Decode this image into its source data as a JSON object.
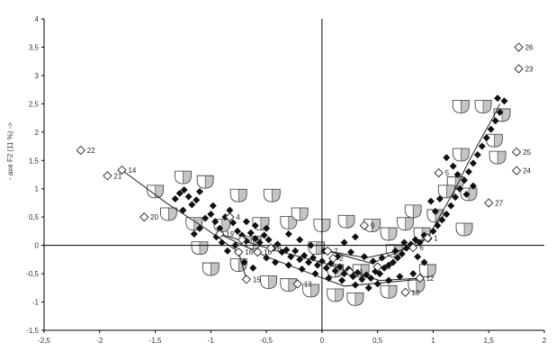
{
  "chart_data": {
    "type": "scatter",
    "title": "",
    "ylabel": "- axe F2 (11 %) ->",
    "xlabel": "",
    "xlim": [
      -2.5,
      2
    ],
    "ylim": [
      -1.5,
      4
    ],
    "xticks": [
      -2.5,
      -2,
      -1.5,
      -1,
      -0.5,
      0,
      0.5,
      1,
      1.5,
      2
    ],
    "xtick_labels": [
      "-2,5",
      "-2",
      "-1,5",
      "-1",
      "-0,5",
      "0",
      "0,5",
      "1",
      "1,5",
      "2"
    ],
    "yticks": [
      -1.5,
      -1,
      -0.5,
      0,
      0.5,
      1,
      1.5,
      2,
      2.5,
      3,
      3.5,
      4
    ],
    "ytick_labels": [
      "-1,5",
      "-1",
      "-0,5",
      "0",
      "0,5",
      "1",
      "1,5",
      "2",
      "2,5",
      "3",
      "3,5",
      "4"
    ],
    "grid": false,
    "legend": "none",
    "colors": {
      "filled": "#111111",
      "open_stroke": "#222222",
      "line": "#222222",
      "axis": "#000000"
    },
    "series": [
      {
        "marker": "filled-diamond",
        "points": [
          [
            -1.32,
            0.82
          ],
          [
            -1.28,
            0.92
          ],
          [
            -1.24,
            0.98
          ],
          [
            -1.2,
            0.86
          ],
          [
            -1.17,
            0.72
          ],
          [
            -1.13,
            0.8
          ],
          [
            -1.1,
            0.95
          ],
          [
            -1.25,
            0.62
          ],
          [
            -1.05,
            0.48
          ],
          [
            -1.0,
            0.55
          ],
          [
            -0.96,
            0.42
          ],
          [
            -0.92,
            0.3
          ],
          [
            -0.87,
            0.5
          ],
          [
            -0.83,
            0.62
          ],
          [
            -0.8,
            0.4
          ],
          [
            -0.76,
            0.25
          ],
          [
            -0.72,
            0.18
          ],
          [
            -0.68,
            0.08
          ],
          [
            -0.64,
            0.22
          ],
          [
            -0.6,
            0.12
          ],
          [
            -0.56,
            0.05
          ],
          [
            -0.52,
            0.18
          ],
          [
            -0.48,
            0.1
          ],
          [
            -0.44,
            -0.05
          ],
          [
            -0.4,
            0.02
          ],
          [
            -0.36,
            -0.12
          ],
          [
            -0.32,
            -0.08
          ],
          [
            -0.28,
            -0.2
          ],
          [
            -0.24,
            -0.1
          ],
          [
            -0.2,
            -0.25
          ],
          [
            -0.16,
            -0.18
          ],
          [
            -0.12,
            -0.3
          ],
          [
            -0.08,
            -0.22
          ],
          [
            -0.04,
            -0.35
          ],
          [
            0.0,
            -0.28
          ],
          [
            0.04,
            -0.4
          ],
          [
            0.08,
            -0.32
          ],
          [
            0.12,
            -0.45
          ],
          [
            0.16,
            -0.38
          ],
          [
            0.2,
            -0.5
          ],
          [
            0.24,
            -0.42
          ],
          [
            0.28,
            -0.55
          ],
          [
            0.32,
            -0.48
          ],
          [
            0.36,
            -0.6
          ],
          [
            0.4,
            -0.52
          ],
          [
            0.44,
            -0.58
          ],
          [
            0.48,
            -0.46
          ],
          [
            0.52,
            -0.5
          ],
          [
            0.56,
            -0.4
          ],
          [
            0.6,
            -0.35
          ],
          [
            0.64,
            -0.3
          ],
          [
            0.68,
            -0.22
          ],
          [
            0.72,
            -0.15
          ],
          [
            0.76,
            -0.05
          ],
          [
            0.8,
            0.02
          ],
          [
            0.84,
            0.1
          ],
          [
            0.88,
            0.05
          ],
          [
            0.92,
            0.18
          ],
          [
            0.96,
            0.12
          ],
          [
            1.0,
            0.25
          ],
          [
            1.04,
            0.35
          ],
          [
            1.08,
            0.45
          ],
          [
            1.12,
            0.55
          ],
          [
            1.16,
            0.7
          ],
          [
            1.2,
            0.85
          ],
          [
            1.24,
            1.0
          ],
          [
            1.28,
            1.15
          ],
          [
            1.32,
            1.3
          ],
          [
            1.36,
            1.45
          ],
          [
            1.4,
            1.6
          ],
          [
            1.44,
            1.75
          ],
          [
            1.48,
            1.9
          ],
          [
            1.52,
            2.05
          ],
          [
            1.56,
            2.2
          ],
          [
            1.6,
            2.35
          ],
          [
            1.64,
            2.55
          ],
          [
            1.58,
            2.6
          ],
          [
            1.12,
            1.55
          ],
          [
            1.18,
            1.4
          ],
          [
            1.22,
            1.25
          ],
          [
            1.02,
            0.6
          ],
          [
            0.98,
            0.78
          ],
          [
            1.06,
            0.82
          ],
          [
            1.3,
            0.9
          ],
          [
            1.36,
            1.05
          ],
          [
            -0.7,
            -0.3
          ],
          [
            -0.62,
            -0.4
          ],
          [
            -0.5,
            -0.22
          ],
          [
            -0.42,
            -0.3
          ],
          [
            -0.3,
            -0.35
          ],
          [
            -0.18,
            -0.42
          ],
          [
            -0.06,
            -0.5
          ],
          [
            0.06,
            -0.58
          ],
          [
            0.18,
            -0.62
          ],
          [
            0.3,
            -0.7
          ],
          [
            0.42,
            -0.75
          ],
          [
            0.5,
            -0.68
          ],
          [
            0.6,
            -0.62
          ],
          [
            0.7,
            -0.55
          ],
          [
            0.82,
            -0.5
          ],
          [
            -0.85,
            -0.1
          ],
          [
            -0.9,
            0.05
          ],
          [
            -0.78,
            0.0
          ],
          [
            -0.95,
            0.15
          ],
          [
            -1.1,
            0.3
          ],
          [
            -0.3,
            0.2
          ],
          [
            -0.2,
            0.1
          ],
          [
            -0.1,
            0.0
          ],
          [
            0.02,
            -0.1
          ],
          [
            0.14,
            -0.2
          ],
          [
            0.26,
            -0.12
          ],
          [
            0.38,
            -0.2
          ],
          [
            0.46,
            -0.28
          ],
          [
            0.54,
            -0.22
          ],
          [
            0.66,
            -0.1
          ],
          [
            0.74,
            0.05
          ],
          [
            0.86,
            -0.2
          ],
          [
            0.92,
            -0.3
          ],
          [
            0.3,
            0.15
          ],
          [
            0.2,
            0.05
          ],
          [
            -0.6,
            0.35
          ],
          [
            -0.68,
            0.42
          ],
          [
            -0.5,
            0.3
          ],
          [
            -1.15,
            0.2
          ],
          [
            -0.98,
            0.7
          ]
        ]
      },
      {
        "marker": "open-diamond",
        "points": [
          {
            "x": 1.77,
            "y": 3.5,
            "label": "26"
          },
          {
            "x": 1.77,
            "y": 3.12,
            "label": "23"
          },
          {
            "x": 1.75,
            "y": 1.65,
            "label": "25"
          },
          {
            "x": 1.75,
            "y": 1.32,
            "label": "24"
          },
          {
            "x": 1.5,
            "y": 0.75,
            "label": "27"
          },
          {
            "x": 1.05,
            "y": 1.28,
            "label": "5"
          },
          {
            "x": -2.17,
            "y": 1.68,
            "label": "22"
          },
          {
            "x": -1.93,
            "y": 1.23,
            "label": "21"
          },
          {
            "x": -1.8,
            "y": 1.33,
            "label": "14"
          },
          {
            "x": -1.6,
            "y": 0.5,
            "label": "20"
          },
          {
            "x": -0.92,
            "y": 0.2,
            "label": "19"
          },
          {
            "x": -0.75,
            "y": -0.12,
            "label": "16"
          },
          {
            "x": -0.83,
            "y": 0.5,
            "label": "4"
          },
          {
            "x": -0.72,
            "y": 0.1,
            "label": "3"
          },
          {
            "x": -0.58,
            "y": -0.12,
            "label": "10"
          },
          {
            "x": -0.46,
            "y": -0.05,
            "label": "8"
          },
          {
            "x": -0.68,
            "y": -0.6,
            "label": "15"
          },
          {
            "x": -0.22,
            "y": -0.68,
            "label": "13"
          },
          {
            "x": 0.1,
            "y": -0.23,
            "label": "2"
          },
          {
            "x": 0.38,
            "y": 0.35,
            "label": "9"
          },
          {
            "x": 0.25,
            "y": -0.47,
            "label": "11"
          },
          {
            "x": 0.5,
            "y": -0.38,
            "label": "17"
          },
          {
            "x": 0.82,
            "y": -0.04,
            "label": "6"
          },
          {
            "x": 0.95,
            "y": 0.13,
            "label": "1"
          },
          {
            "x": 0.88,
            "y": -0.58,
            "label": "12"
          },
          {
            "x": 0.75,
            "y": -0.83,
            "label": "18"
          },
          {
            "x": 0.05,
            "y": -0.1,
            "label": "7"
          }
        ]
      }
    ],
    "lines": [
      [
        [
          -1.8,
          1.33
        ],
        [
          -1.4,
          0.75
        ],
        [
          -1.05,
          0.3
        ],
        [
          -0.75,
          -0.12
        ],
        [
          -0.68,
          -0.6
        ]
      ],
      [
        [
          -0.92,
          0.2
        ],
        [
          -0.4,
          -0.1
        ],
        [
          0.0,
          -0.3
        ],
        [
          0.25,
          -0.47
        ],
        [
          0.52,
          -0.62
        ],
        [
          0.88,
          -0.58
        ]
      ],
      [
        [
          -0.9,
          0.18
        ],
        [
          -0.5,
          -0.2
        ],
        [
          -0.1,
          -0.5
        ],
        [
          0.2,
          -0.72
        ],
        [
          0.88,
          -0.6
        ]
      ],
      [
        [
          0.05,
          -0.1
        ],
        [
          0.4,
          -0.22
        ],
        [
          0.82,
          -0.04
        ],
        [
          0.95,
          0.13
        ],
        [
          1.2,
          1.0
        ],
        [
          1.32,
          1.48
        ],
        [
          1.45,
          1.95
        ],
        [
          1.55,
          2.3
        ],
        [
          1.6,
          2.5
        ]
      ],
      [
        [
          0.05,
          -0.1
        ],
        [
          0.45,
          -0.32
        ],
        [
          0.95,
          0.13
        ]
      ]
    ],
    "vessel_icons": [
      [
        -1.25,
        1.2
      ],
      [
        -1.05,
        1.12
      ],
      [
        -0.75,
        0.88
      ],
      [
        -0.45,
        0.88
      ],
      [
        -1.5,
        0.95
      ],
      [
        -1.38,
        0.55
      ],
      [
        -1.15,
        0.38
      ],
      [
        -0.9,
        0.35
      ],
      [
        -0.55,
        0.38
      ],
      [
        -0.3,
        0.4
      ],
      [
        -0.2,
        0.55
      ],
      [
        0.0,
        0.35
      ],
      [
        0.22,
        0.42
      ],
      [
        0.45,
        0.35
      ],
      [
        0.6,
        0.2
      ],
      [
        0.75,
        0.38
      ],
      [
        0.82,
        0.6
      ],
      [
        1.2,
        1.1
      ],
      [
        1.32,
        0.9
      ],
      [
        1.55,
        1.85
      ],
      [
        1.62,
        2.3
      ],
      [
        1.45,
        2.45
      ],
      [
        1.25,
        2.45
      ],
      [
        1.58,
        1.55
      ],
      [
        1.25,
        1.6
      ],
      [
        1.12,
        0.95
      ],
      [
        1.02,
        0.52
      ],
      [
        1.28,
        0.28
      ],
      [
        -1.1,
        -0.05
      ],
      [
        -1.0,
        -0.42
      ],
      [
        -0.75,
        -0.35
      ],
      [
        -0.48,
        -0.65
      ],
      [
        -0.3,
        -0.7
      ],
      [
        -0.1,
        -0.8
      ],
      [
        0.12,
        -0.88
      ],
      [
        0.3,
        -0.95
      ],
      [
        0.6,
        -0.82
      ],
      [
        0.85,
        -0.72
      ],
      [
        0.95,
        -0.45
      ],
      [
        0.65,
        -0.1
      ],
      [
        0.35,
        -0.45
      ],
      [
        0.12,
        -0.45
      ],
      [
        -0.05,
        -0.05
      ],
      [
        -0.62,
        0.05
      ],
      [
        0.9,
        0.2
      ]
    ]
  }
}
